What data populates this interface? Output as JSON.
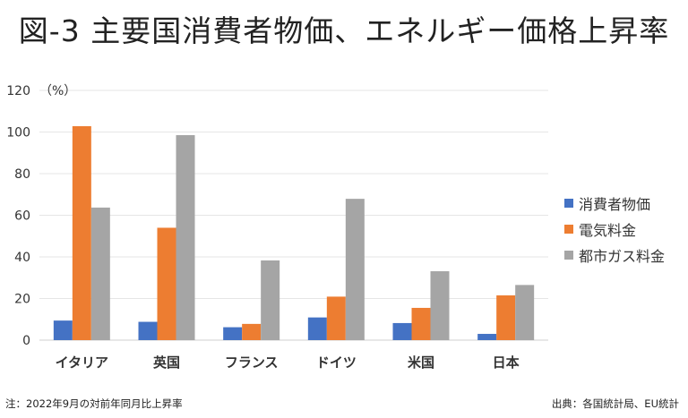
{
  "title": "図-3 主要国消費者物価、エネルギー価格上昇率",
  "footnote": "注：2022年9月の対前年同月比上昇率",
  "source": "出典：各国統計局、EU統計",
  "chart_data": {
    "type": "bar",
    "ylabel": "（%）",
    "ylim": [
      0,
      120
    ],
    "yticks": [
      0,
      20,
      40,
      60,
      80,
      100,
      120
    ],
    "grid": true,
    "legend_position": "right",
    "categories": [
      "イタリア",
      "英国",
      "フランス",
      "ドイツ",
      "米国",
      "日本"
    ],
    "series": [
      {
        "name": "消費者物価",
        "color": "#4472c4",
        "values": [
          9.4,
          8.8,
          6.2,
          10.9,
          8.2,
          3.0
        ]
      },
      {
        "name": "電気料金",
        "color": "#ed7d31",
        "values": [
          102.8,
          54.0,
          7.8,
          20.9,
          15.5,
          21.5
        ]
      },
      {
        "name": "都市ガス料金",
        "color": "#a5a5a5",
        "values": [
          63.7,
          98.5,
          38.3,
          67.9,
          33.1,
          26.5
        ]
      }
    ]
  }
}
